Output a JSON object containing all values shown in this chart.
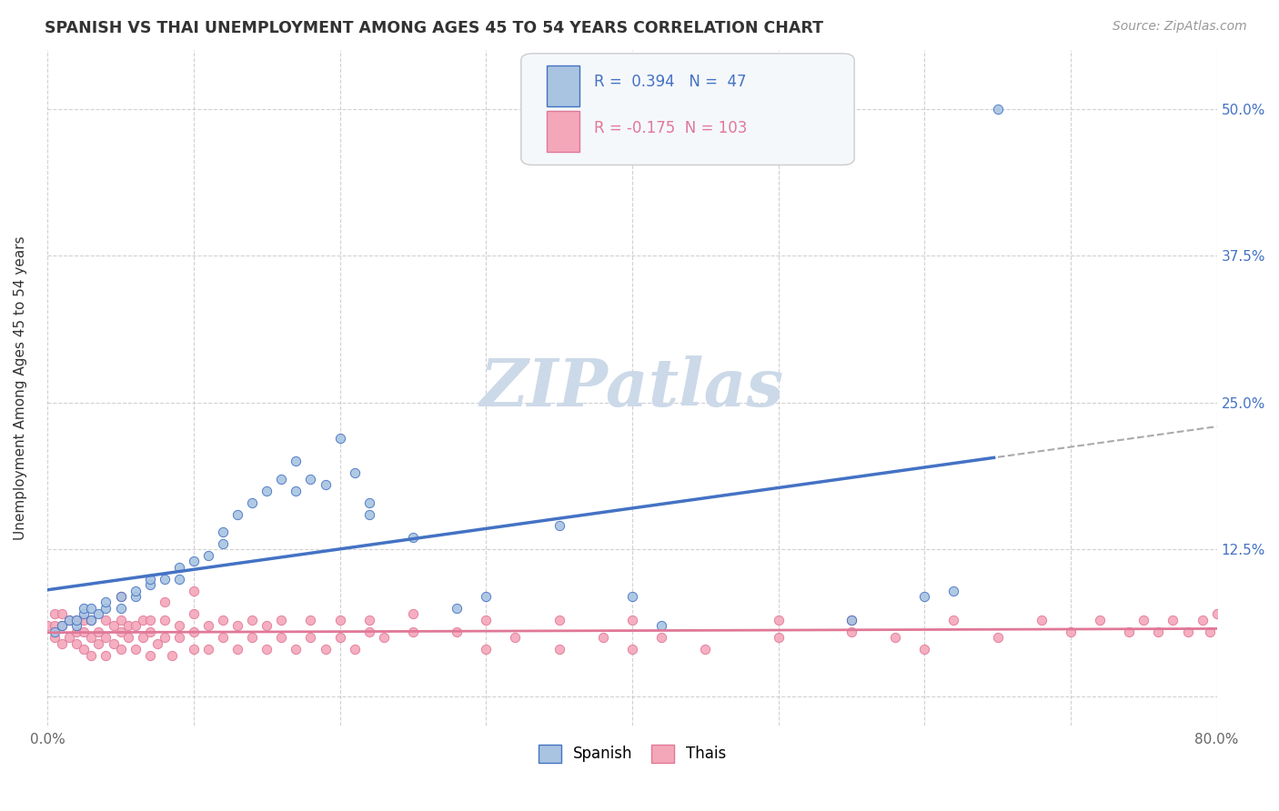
{
  "title": "SPANISH VS THAI UNEMPLOYMENT AMONG AGES 45 TO 54 YEARS CORRELATION CHART",
  "source": "Source: ZipAtlas.com",
  "ylabel": "Unemployment Among Ages 45 to 54 years",
  "xlim": [
    0.0,
    0.8
  ],
  "ylim": [
    -0.025,
    0.55
  ],
  "xtick_positions": [
    0.0,
    0.1,
    0.2,
    0.3,
    0.4,
    0.5,
    0.6,
    0.7,
    0.8
  ],
  "xticklabels": [
    "0.0%",
    "",
    "",
    "",
    "",
    "",
    "",
    "",
    "80.0%"
  ],
  "ytick_positions": [
    0.0,
    0.125,
    0.25,
    0.375,
    0.5
  ],
  "ytick_labels": [
    "",
    "12.5%",
    "25.0%",
    "37.5%",
    "50.0%"
  ],
  "spanish_fill_color": "#a8c4e0",
  "spanish_edge_color": "#4472c4",
  "thai_fill_color": "#f4a7b9",
  "thai_edge_color": "#e07898",
  "trendline_spanish_color": "#4472c4",
  "trendline_thai_color": "#e07898",
  "trendline_dash_color": "#aaaaaa",
  "R_spanish": 0.394,
  "N_spanish": 47,
  "R_thai": -0.175,
  "N_thai": 103,
  "spanish_x": [
    0.005,
    0.01,
    0.015,
    0.02,
    0.02,
    0.025,
    0.025,
    0.03,
    0.03,
    0.035,
    0.04,
    0.04,
    0.05,
    0.05,
    0.06,
    0.06,
    0.07,
    0.07,
    0.08,
    0.09,
    0.09,
    0.1,
    0.11,
    0.12,
    0.12,
    0.13,
    0.14,
    0.15,
    0.16,
    0.17,
    0.17,
    0.18,
    0.19,
    0.2,
    0.21,
    0.22,
    0.22,
    0.25,
    0.28,
    0.3,
    0.35,
    0.4,
    0.42,
    0.55,
    0.6,
    0.62,
    0.65
  ],
  "spanish_y": [
    0.055,
    0.06,
    0.065,
    0.06,
    0.065,
    0.07,
    0.075,
    0.065,
    0.075,
    0.07,
    0.075,
    0.08,
    0.075,
    0.085,
    0.085,
    0.09,
    0.095,
    0.1,
    0.1,
    0.1,
    0.11,
    0.115,
    0.12,
    0.13,
    0.14,
    0.155,
    0.165,
    0.175,
    0.185,
    0.175,
    0.2,
    0.185,
    0.18,
    0.22,
    0.19,
    0.155,
    0.165,
    0.135,
    0.075,
    0.085,
    0.145,
    0.085,
    0.06,
    0.065,
    0.085,
    0.09,
    0.5
  ],
  "thai_x": [
    0.0,
    0.005,
    0.005,
    0.005,
    0.01,
    0.01,
    0.01,
    0.015,
    0.015,
    0.02,
    0.02,
    0.02,
    0.025,
    0.025,
    0.025,
    0.03,
    0.03,
    0.03,
    0.035,
    0.035,
    0.04,
    0.04,
    0.04,
    0.045,
    0.045,
    0.05,
    0.05,
    0.05,
    0.055,
    0.055,
    0.06,
    0.06,
    0.065,
    0.065,
    0.07,
    0.07,
    0.07,
    0.075,
    0.08,
    0.08,
    0.085,
    0.09,
    0.09,
    0.1,
    0.1,
    0.1,
    0.11,
    0.11,
    0.12,
    0.12,
    0.13,
    0.13,
    0.14,
    0.14,
    0.15,
    0.15,
    0.16,
    0.16,
    0.17,
    0.18,
    0.18,
    0.19,
    0.2,
    0.2,
    0.21,
    0.22,
    0.22,
    0.23,
    0.25,
    0.25,
    0.28,
    0.3,
    0.3,
    0.32,
    0.35,
    0.35,
    0.38,
    0.4,
    0.4,
    0.42,
    0.45,
    0.5,
    0.5,
    0.55,
    0.55,
    0.58,
    0.6,
    0.62,
    0.65,
    0.68,
    0.7,
    0.72,
    0.74,
    0.75,
    0.76,
    0.77,
    0.78,
    0.79,
    0.795,
    0.8,
    0.05,
    0.08,
    0.1
  ],
  "thai_y": [
    0.06,
    0.05,
    0.06,
    0.07,
    0.045,
    0.06,
    0.07,
    0.05,
    0.065,
    0.045,
    0.055,
    0.065,
    0.04,
    0.055,
    0.065,
    0.035,
    0.05,
    0.065,
    0.045,
    0.055,
    0.035,
    0.05,
    0.065,
    0.045,
    0.06,
    0.04,
    0.055,
    0.065,
    0.05,
    0.06,
    0.04,
    0.06,
    0.05,
    0.065,
    0.035,
    0.055,
    0.065,
    0.045,
    0.05,
    0.065,
    0.035,
    0.05,
    0.06,
    0.04,
    0.055,
    0.07,
    0.04,
    0.06,
    0.05,
    0.065,
    0.04,
    0.06,
    0.05,
    0.065,
    0.04,
    0.06,
    0.05,
    0.065,
    0.04,
    0.05,
    0.065,
    0.04,
    0.05,
    0.065,
    0.04,
    0.055,
    0.065,
    0.05,
    0.055,
    0.07,
    0.055,
    0.04,
    0.065,
    0.05,
    0.04,
    0.065,
    0.05,
    0.04,
    0.065,
    0.05,
    0.04,
    0.065,
    0.05,
    0.055,
    0.065,
    0.05,
    0.04,
    0.065,
    0.05,
    0.065,
    0.055,
    0.065,
    0.055,
    0.065,
    0.055,
    0.065,
    0.055,
    0.065,
    0.055,
    0.07,
    0.085,
    0.08,
    0.09
  ],
  "background_color": "#ffffff",
  "grid_color": "#cccccc",
  "title_color": "#333333",
  "axis_label_color": "#333333",
  "right_tick_color": "#4472c4",
  "watermark_text": "ZIPatlas",
  "watermark_color": "#ccd9e8"
}
